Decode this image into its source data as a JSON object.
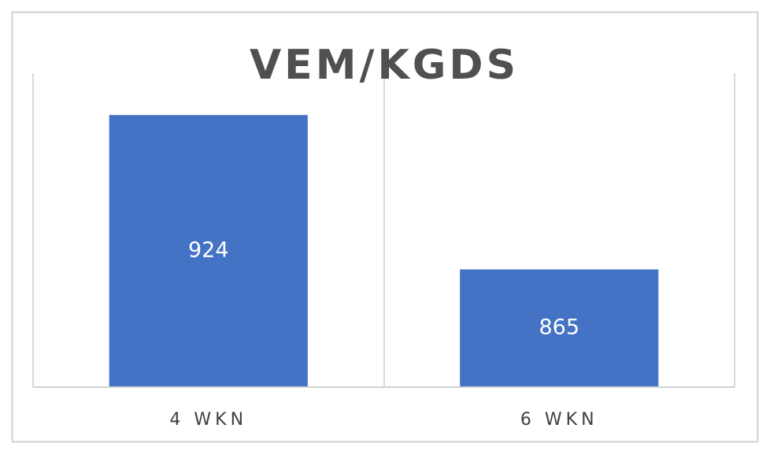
{
  "chart_data": {
    "type": "bar",
    "title": "VEM/KGDS",
    "categories": [
      "4 WKN",
      "6 WKN"
    ],
    "values": [
      924,
      865
    ],
    "color": "#4472c4",
    "ylim": [
      820,
      940
    ],
    "data_labels": true
  }
}
